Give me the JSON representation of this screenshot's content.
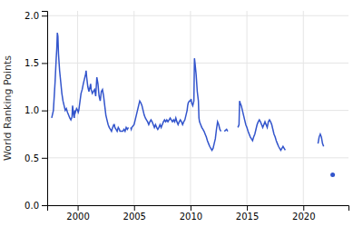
{
  "chart_data": {
    "type": "line",
    "ylabel": "World Ranking Points",
    "color": "#3355cc",
    "grid": true,
    "xlim": [
      1997.3,
      2024.0
    ],
    "xticks": [
      2000,
      2005,
      2010,
      2015,
      2020
    ],
    "ylim": [
      0,
      2.05
    ],
    "yticks": [
      {
        "value": 0,
        "label": "0.0"
      },
      0.5,
      {
        "value": 1.0,
        "label": "1.0"
      },
      {
        "value": 1.5,
        "label": "1.5"
      },
      {
        "value": 2.0,
        "label": "2.0"
      }
    ],
    "x": [
      1997.7,
      1997.85,
      1998.0,
      1998.1,
      1998.15,
      1998.2,
      1998.25,
      1998.3,
      1998.4,
      1998.5,
      1998.6,
      1998.7,
      1998.8,
      1998.9,
      1999.0,
      1999.1,
      1999.2,
      1999.3,
      1999.4,
      1999.5,
      1999.55,
      1999.6,
      1999.65,
      1999.7,
      1999.75,
      1999.8,
      1999.85,
      1999.9,
      2000.0,
      2000.05,
      2000.1,
      2000.3,
      2000.4,
      2000.5,
      2000.6,
      2000.7,
      2000.75,
      2000.8,
      2000.9,
      2001.0,
      2001.1,
      2001.15,
      2001.2,
      2001.3,
      2001.4,
      2001.5,
      2001.6,
      2001.7,
      2001.8,
      2001.9,
      2002.0,
      2002.1,
      2002.2,
      2002.3,
      2002.4,
      2002.5,
      2002.6,
      2002.7,
      2002.8,
      2002.9,
      2003.0,
      2003.1,
      2003.2,
      2003.25,
      2003.3,
      2003.4,
      2003.5,
      2003.6,
      2003.7,
      2003.75,
      2004.0,
      2004.1,
      2004.2,
      2004.3,
      2004.4,
      2004.5,
      null,
      2004.7,
      2004.75,
      2004.8,
      2005.0,
      2005.1,
      2005.2,
      2005.3,
      2005.4,
      2005.5,
      2005.6,
      2005.7,
      2005.8,
      2005.9,
      2006.0,
      2006.1,
      2006.2,
      2006.3,
      2006.4,
      2006.5,
      2006.6,
      2006.7,
      2006.8,
      2006.9,
      2007.0,
      2007.1,
      2007.2,
      2007.3,
      2007.4,
      2007.5,
      2007.6,
      2007.7,
      2007.8,
      2007.9,
      2008.0,
      2008.1,
      2008.2,
      2008.3,
      2008.4,
      2008.5,
      2008.6,
      2008.7,
      2008.8,
      2008.9,
      2009.0,
      2009.1,
      2009.2,
      2009.3,
      2009.4,
      2009.5,
      2009.6,
      2009.7,
      2009.75,
      2009.8,
      2009.9,
      2010.0,
      2010.05,
      2010.1,
      2010.2,
      2010.3,
      2010.35,
      2010.4,
      2010.5,
      2010.6,
      2010.7,
      2010.75,
      2010.8,
      2010.9,
      2011.0,
      2011.1,
      2011.2,
      2011.3,
      2011.4,
      2011.5,
      2011.6,
      2011.7,
      2011.8,
      2011.9,
      2012.0,
      2012.1,
      2012.2,
      2012.3,
      2012.4,
      2012.5,
      2012.6,
      2012.7,
      null,
      2013.0,
      2013.2,
      2013.3,
      null,
      2014.2,
      2014.3,
      2014.35,
      2014.4,
      2014.5,
      2014.6,
      2014.7,
      2014.8,
      2014.9,
      2015.0,
      2015.1,
      2015.2,
      2015.3,
      2015.4,
      2015.5,
      2015.6,
      2015.7,
      2015.8,
      2015.9,
      2016.0,
      2016.1,
      2016.2,
      2016.3,
      2016.4,
      2016.5,
      2016.6,
      2016.7,
      2016.8,
      2016.9,
      2017.0,
      2017.1,
      2017.2,
      2017.3,
      2017.4,
      2017.5,
      2017.6,
      2017.7,
      2017.8,
      2017.9,
      2018.0,
      2018.1,
      2018.2,
      2018.3,
      2018.4,
      null,
      2021.3,
      2021.4,
      2021.5,
      2021.6,
      2021.7,
      2021.8,
      null,
      2022.6
    ],
    "values": [
      0.92,
      1.0,
      1.3,
      1.55,
      1.65,
      1.82,
      1.78,
      1.6,
      1.42,
      1.3,
      1.18,
      1.1,
      1.05,
      1.0,
      1.02,
      0.98,
      0.95,
      0.92,
      0.9,
      0.93,
      1.05,
      1.0,
      0.95,
      0.92,
      1.0,
      0.98,
      1.0,
      1.02,
      1.0,
      0.98,
      1.0,
      1.18,
      1.22,
      1.28,
      1.33,
      1.38,
      1.42,
      1.35,
      1.25,
      1.2,
      1.25,
      1.28,
      1.22,
      1.18,
      1.2,
      1.22,
      1.15,
      1.35,
      1.28,
      1.15,
      1.1,
      1.2,
      1.22,
      1.15,
      1.05,
      0.95,
      0.9,
      0.85,
      0.82,
      0.8,
      0.78,
      0.82,
      0.85,
      0.85,
      0.82,
      0.8,
      0.78,
      0.82,
      0.8,
      0.78,
      0.78,
      0.8,
      0.78,
      0.82,
      0.8,
      0.82,
      null,
      0.82,
      0.8,
      0.82,
      0.85,
      0.9,
      0.95,
      1.0,
      1.05,
      1.1,
      1.08,
      1.05,
      1.0,
      0.95,
      0.92,
      0.9,
      0.88,
      0.85,
      0.88,
      0.9,
      0.88,
      0.85,
      0.82,
      0.85,
      0.82,
      0.8,
      0.82,
      0.85,
      0.82,
      0.85,
      0.88,
      0.9,
      0.88,
      0.9,
      0.88,
      0.9,
      0.92,
      0.9,
      0.88,
      0.9,
      0.88,
      0.92,
      0.88,
      0.85,
      0.88,
      0.9,
      0.88,
      0.85,
      0.88,
      0.9,
      0.95,
      1.0,
      1.05,
      1.08,
      1.1,
      1.1,
      1.12,
      1.08,
      1.05,
      1.1,
      1.55,
      1.5,
      1.38,
      1.2,
      1.1,
      0.92,
      0.88,
      0.85,
      0.82,
      0.8,
      0.78,
      0.75,
      0.72,
      0.68,
      0.65,
      0.62,
      0.6,
      0.58,
      0.6,
      0.65,
      0.7,
      0.8,
      0.88,
      0.85,
      0.8,
      0.78,
      null,
      0.78,
      0.8,
      0.78,
      null,
      0.82,
      0.85,
      1.1,
      1.08,
      1.05,
      1.0,
      0.95,
      0.9,
      0.85,
      0.82,
      0.78,
      0.75,
      0.72,
      0.7,
      0.68,
      0.72,
      0.75,
      0.8,
      0.85,
      0.88,
      0.9,
      0.88,
      0.85,
      0.82,
      0.85,
      0.88,
      0.85,
      0.82,
      0.88,
      0.9,
      0.88,
      0.85,
      0.8,
      0.75,
      0.72,
      0.68,
      0.65,
      0.62,
      0.6,
      0.58,
      0.6,
      0.62,
      0.6,
      0.58,
      null,
      0.65,
      0.72,
      0.75,
      0.72,
      0.65,
      0.62,
      null,
      0.32
    ]
  }
}
